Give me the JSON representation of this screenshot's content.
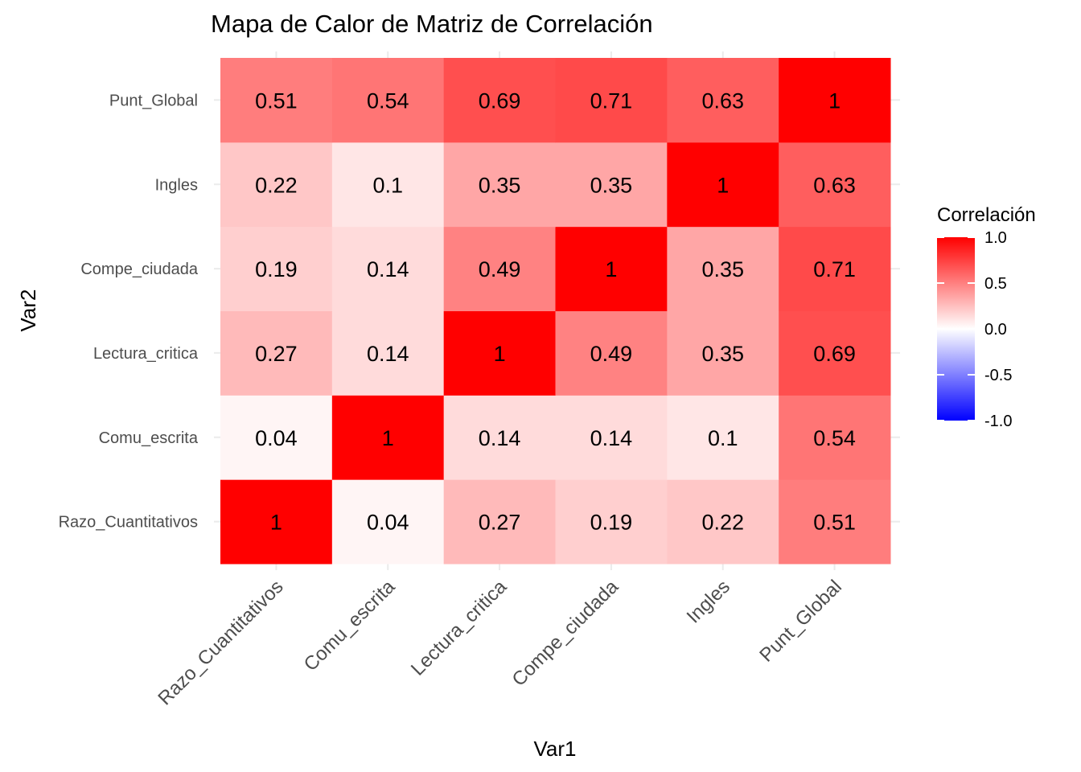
{
  "chart_data": {
    "type": "heatmap",
    "title": "Mapa de Calor de Matriz de Correlación",
    "xlabel": "Var1",
    "ylabel": "Var2",
    "x_categories": [
      "Razo_Cuantitativos",
      "Comu_escrita",
      "Lectura_critica",
      "Compe_ciudada",
      "Ingles",
      "Punt_Global"
    ],
    "y_categories": [
      "Razo_Cuantitativos",
      "Comu_escrita",
      "Lectura_critica",
      "Compe_ciudada",
      "Ingles",
      "Punt_Global"
    ],
    "values": [
      [
        1,
        0.04,
        0.27,
        0.19,
        0.22,
        0.51
      ],
      [
        0.04,
        1,
        0.14,
        0.14,
        0.1,
        0.54
      ],
      [
        0.27,
        0.14,
        1,
        0.49,
        0.35,
        0.69
      ],
      [
        0.19,
        0.14,
        0.49,
        1,
        0.35,
        0.71
      ],
      [
        0.22,
        0.1,
        0.35,
        0.35,
        1,
        0.63
      ],
      [
        0.51,
        0.54,
        0.69,
        0.71,
        0.63,
        1
      ]
    ],
    "labels": [
      [
        "1",
        "0.04",
        "0.27",
        "0.19",
        "0.22",
        "0.51"
      ],
      [
        "0.04",
        "1",
        "0.14",
        "0.14",
        "0.1",
        "0.54"
      ],
      [
        "0.27",
        "0.14",
        "1",
        "0.49",
        "0.35",
        "0.69"
      ],
      [
        "0.19",
        "0.14",
        "0.49",
        "1",
        "0.35",
        "0.71"
      ],
      [
        "0.22",
        "0.1",
        "0.35",
        "0.35",
        "1",
        "0.63"
      ],
      [
        "0.51",
        "0.54",
        "0.69",
        "0.71",
        "0.63",
        "1"
      ]
    ],
    "legend": {
      "title": "Correlación",
      "ticks": [
        1.0,
        0.5,
        0.0,
        -0.5,
        -1.0
      ],
      "tick_labels": [
        "1.0",
        "0.5",
        "0.0",
        "-0.5",
        "-1.0"
      ],
      "range": [
        -1,
        1
      ],
      "low_color": "#0000ff",
      "mid_color": "#ffffff",
      "high_color": "#ff0000",
      "placement": "right"
    },
    "grid": true
  }
}
